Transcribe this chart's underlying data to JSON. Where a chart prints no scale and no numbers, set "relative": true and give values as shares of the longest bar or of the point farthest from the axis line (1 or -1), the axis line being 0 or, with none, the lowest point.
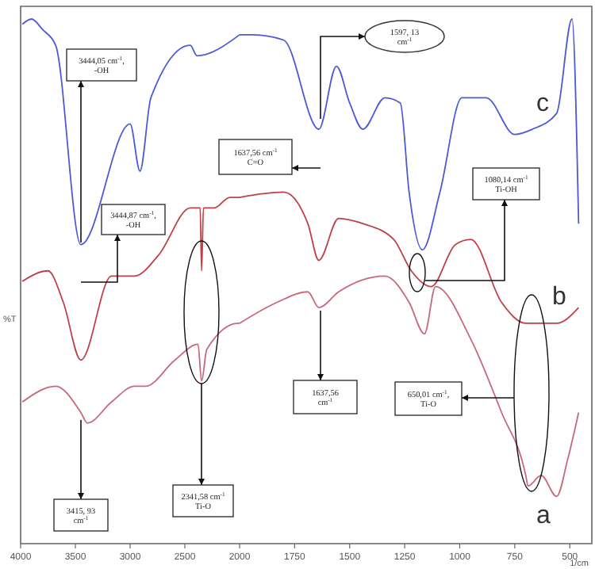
{
  "chart_data": [
    {
      "type": "line",
      "relative": true,
      "ylabel": "%T",
      "xlim": [
        4000,
        2000
      ],
      "xticks": [
        4000,
        3500,
        3000,
        2500,
        2000
      ],
      "legend": false,
      "marker": "none",
      "line_style": "solid",
      "series": [
        {
          "color": "#c8687a",
          "x": [
            3985,
            3680,
            3450,
            3390,
            3170,
            2960,
            2860,
            2590,
            2380,
            2347,
            2300,
            2010,
            2000
          ],
          "values": [
            0.27,
            0.3,
            0.25,
            0.23,
            0.27,
            0.3,
            0.3,
            0.35,
            0.38,
            0.31,
            0.37,
            0.42,
            0.42
          ]
        },
        {
          "color": "#c0404a",
          "x": [
            3985,
            3750,
            3610,
            3450,
            3170,
            2960,
            2740,
            2450,
            2360,
            2347,
            2330,
            2230,
            2090,
            2000
          ],
          "values": [
            0.5,
            0.52,
            0.46,
            0.35,
            0.51,
            0.51,
            0.55,
            0.64,
            0.64,
            0.52,
            0.64,
            0.64,
            0.66,
            0.66
          ]
        },
        {
          "color": "#4a5ad8",
          "x": [
            3985,
            3900,
            3800,
            3680,
            3450,
            3000,
            2910,
            2810,
            2450,
            2390,
            2000
          ],
          "values": [
            0.99,
            1.0,
            0.98,
            0.95,
            0.57,
            0.8,
            0.71,
            0.85,
            0.95,
            0.93,
            0.97
          ]
        }
      ],
      "annotations": [
        "3444,05 cm$^{-1}$, -OH",
        "3444,87 cm$^{-1}$, -OH",
        "3415, 93 cm$^{-1}$",
        "2341,58 cm$^{-1}$ Ti-O"
      ]
    },
    {
      "type": "line",
      "relative": true,
      "xlabel": "1/cm",
      "xlim": [
        2000,
        400
      ],
      "xticks": [
        1750,
        1500,
        1250,
        1000,
        750,
        500
      ],
      "legend": false,
      "marker": "none",
      "line_style": "solid",
      "series": [
        {
          "name": "a",
          "color": "#c8687a",
          "x": [
            2000,
            1830,
            1690,
            1640,
            1550,
            1340,
            1230,
            1160,
            1110,
            950,
            810,
            700,
            690,
            630,
            560,
            510,
            460
          ],
          "values": [
            0.42,
            0.46,
            0.48,
            0.45,
            0.48,
            0.51,
            0.46,
            0.4,
            0.49,
            0.39,
            0.25,
            0.13,
            0.11,
            0.13,
            0.09,
            0.16,
            0.25
          ]
        },
        {
          "name": "b",
          "color": "#c0404a",
          "x": [
            2000,
            1800,
            1690,
            1640,
            1550,
            1440,
            1300,
            1220,
            1130,
            1020,
            950,
            810,
            700,
            560,
            460
          ],
          "values": [
            0.66,
            0.67,
            0.61,
            0.54,
            0.62,
            0.61,
            0.58,
            0.52,
            0.49,
            0.57,
            0.58,
            0.46,
            0.42,
            0.42,
            0.45
          ]
        },
        {
          "name": "c",
          "color": "#4a5ad8",
          "x": [
            2000,
            1940,
            1800,
            1640,
            1560,
            1500,
            1440,
            1340,
            1270,
            1230,
            1170,
            1090,
            990,
            880,
            750,
            670,
            560,
            490,
            460
          ],
          "values": [
            0.97,
            0.97,
            0.96,
            0.79,
            0.91,
            0.84,
            0.79,
            0.85,
            0.84,
            0.67,
            0.56,
            0.67,
            0.85,
            0.85,
            0.78,
            0.79,
            0.82,
            1.0,
            0.61
          ]
        }
      ],
      "annotations": [
        "1597, 13 cm$^{-1}$",
        "1637,56 cm$^{-1}$ C=O",
        "1080,14 cm$^{-1}$ Ti-OH",
        "1637,56 cm$^{-1}$",
        "650,01 cm$^{-1}$, Ti-O"
      ]
    }
  ]
}
